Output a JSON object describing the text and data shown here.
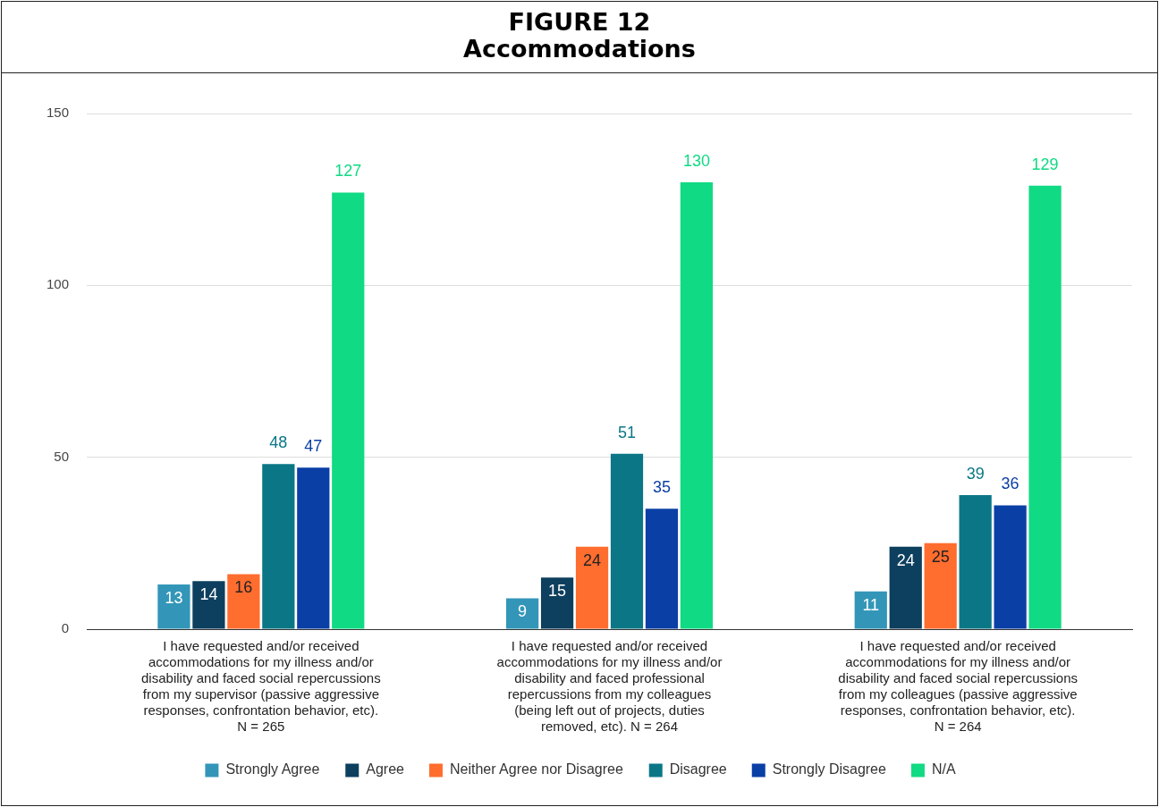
{
  "chart_data": {
    "type": "bar",
    "title": "FIGURE 12",
    "subtitle": "Accommodations",
    "categories": [
      "I have requested and/or received accommodations for my illness and/or disability and faced social repercussions from my supervisor (passive aggressive responses, confrontation behavior, etc). N = 265",
      "I have requested and/or received accommodations for my illness and/or disability and faced professional repercussions from my colleagues (being left out of projects, duties removed, etc). N = 264",
      "I have requested and/or received accommodations for my illness and/or disability and faced social repercussions from my colleagues (passive aggressive responses, confrontation behavior, etc). N = 264"
    ],
    "series": [
      {
        "name": "Strongly Agree",
        "color": "#3396b8",
        "values": [
          13,
          9,
          11
        ]
      },
      {
        "name": "Agree",
        "color": "#0d3f5e",
        "values": [
          14,
          15,
          24
        ]
      },
      {
        "name": "Neither Agree nor Disagree",
        "color": "#ff6d2f",
        "values": [
          16,
          24,
          25
        ]
      },
      {
        "name": "Disagree",
        "color": "#0b7786",
        "values": [
          48,
          51,
          39
        ]
      },
      {
        "name": "Strongly Disagree",
        "color": "#0a3fa6",
        "values": [
          47,
          35,
          36
        ]
      },
      {
        "name": "N/A",
        "color": "#10da83",
        "values": [
          127,
          130,
          129
        ]
      }
    ],
    "ylim": [
      0,
      150
    ],
    "yticks": [
      0,
      50,
      100,
      150
    ],
    "grid": "y",
    "legend": "bottom",
    "data_labels": true
  }
}
